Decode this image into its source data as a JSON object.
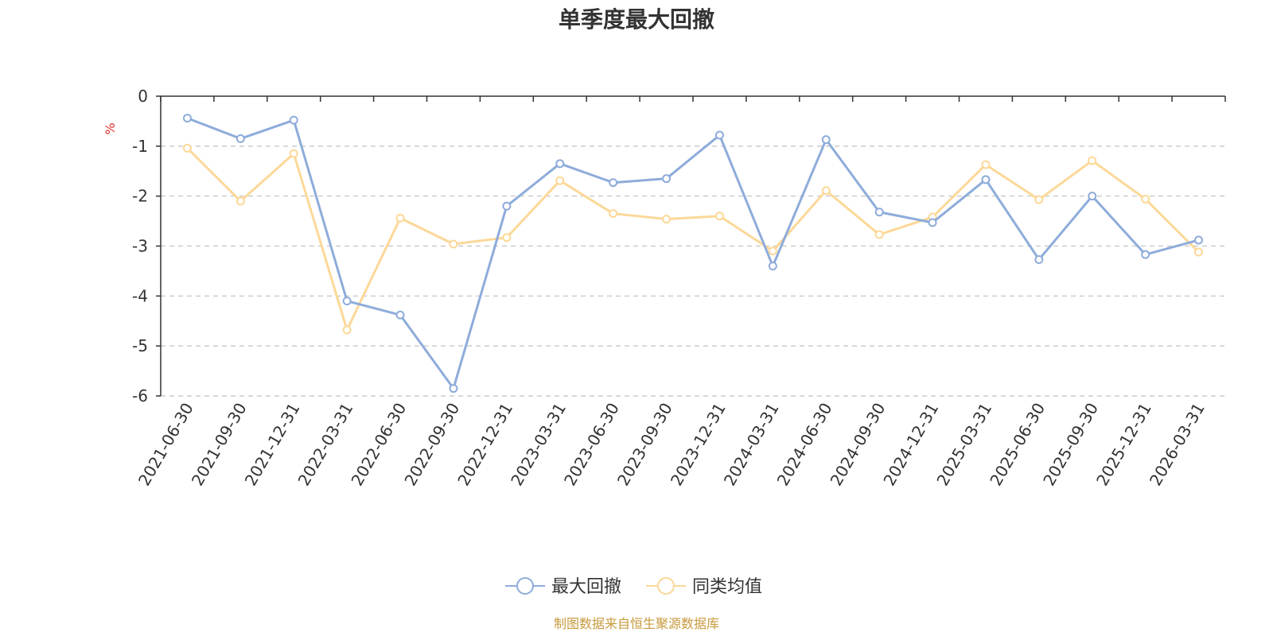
{
  "chart_data": {
    "type": "line",
    "title": "单季度最大回撤",
    "ylabel": "%",
    "ylim": [
      -6,
      0
    ],
    "yticks": [
      0,
      -1,
      -2,
      -3,
      -4,
      -5,
      -6
    ],
    "grid": true,
    "legend_position": "bottom-center",
    "categories": [
      "2021-06-30",
      "2021-09-30",
      "2021-12-31",
      "2022-03-31",
      "2022-06-30",
      "2022-09-30",
      "2022-12-31",
      "2023-03-31",
      "2023-06-30",
      "2023-09-30",
      "2023-12-31",
      "2024-03-31",
      "2024-06-30",
      "2024-09-30",
      "2024-12-31",
      "2025-03-31",
      "2025-06-30",
      "2025-09-30",
      "2025-12-31",
      "2026-03-31"
    ],
    "series": [
      {
        "name": "最大回撤",
        "color": "#8eacda",
        "values": [
          -0.44,
          -0.85,
          -0.48,
          -4.1,
          -4.38,
          -5.85,
          -2.2,
          -1.35,
          -1.73,
          -1.65,
          -0.78,
          -3.4,
          -0.87,
          -2.32,
          -2.53,
          -1.67,
          -3.27,
          -2.0,
          -3.17,
          -2.88
        ]
      },
      {
        "name": "同类均值",
        "color": "#fcd898",
        "values": [
          -1.04,
          -2.1,
          -1.15,
          -4.68,
          -2.44,
          -2.96,
          -2.83,
          -1.69,
          -2.35,
          -2.46,
          -2.4,
          -3.1,
          -1.89,
          -2.77,
          -2.42,
          -1.37,
          -2.07,
          -1.29,
          -2.06,
          -3.12
        ]
      }
    ],
    "source_note": "制图数据来自恒生聚源数据库",
    "unit_color": "#e0312b",
    "source_color": "#c79a3c"
  }
}
